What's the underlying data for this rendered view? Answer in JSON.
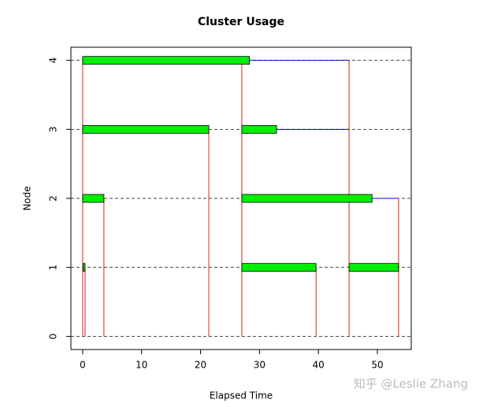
{
  "chart_data": {
    "type": "gantt",
    "title": "Cluster Usage",
    "xlabel": "Elapsed Time",
    "ylabel": "Node",
    "xlim": [
      -2,
      55.75
    ],
    "ylim": [
      -0.19,
      4.19
    ],
    "xticks": [
      0,
      10,
      20,
      30,
      40,
      50
    ],
    "yticks": [
      0,
      1,
      2,
      3,
      4
    ],
    "grid": true,
    "task_color": "#00ee00",
    "wait_color": "#0000cc",
    "message_color": "#dd2222",
    "tasks": [
      {
        "node": 4,
        "start": 0,
        "end": 28.3
      },
      {
        "node": 3,
        "start": 0,
        "end": 21.4
      },
      {
        "node": 3,
        "start": 27.0,
        "end": 32.9
      },
      {
        "node": 2,
        "start": 0,
        "end": 3.6
      },
      {
        "node": 2,
        "start": 27.0,
        "end": 49.1
      },
      {
        "node": 1,
        "start": 0.1,
        "end": 0.4
      },
      {
        "node": 1,
        "start": 27.0,
        "end": 39.6
      },
      {
        "node": 1,
        "start": 45.2,
        "end": 53.6
      }
    ],
    "waits": [
      {
        "node": 4,
        "start": 28.3,
        "end": 45.2
      },
      {
        "node": 3,
        "start": 32.9,
        "end": 45.2
      },
      {
        "node": 2,
        "start": 49.1,
        "end": 53.6
      }
    ],
    "messages": [
      {
        "x": 0,
        "node": 4
      },
      {
        "x": 0.4,
        "node": 1
      },
      {
        "x": 3.6,
        "node": 2
      },
      {
        "x": 21.4,
        "node": 3
      },
      {
        "x": 27.0,
        "node": 4
      },
      {
        "x": 39.6,
        "node": 1
      },
      {
        "x": 45.2,
        "node": 4
      },
      {
        "x": 53.6,
        "node": 2
      }
    ],
    "watermark": "知乎 @Leslie Zhang"
  }
}
